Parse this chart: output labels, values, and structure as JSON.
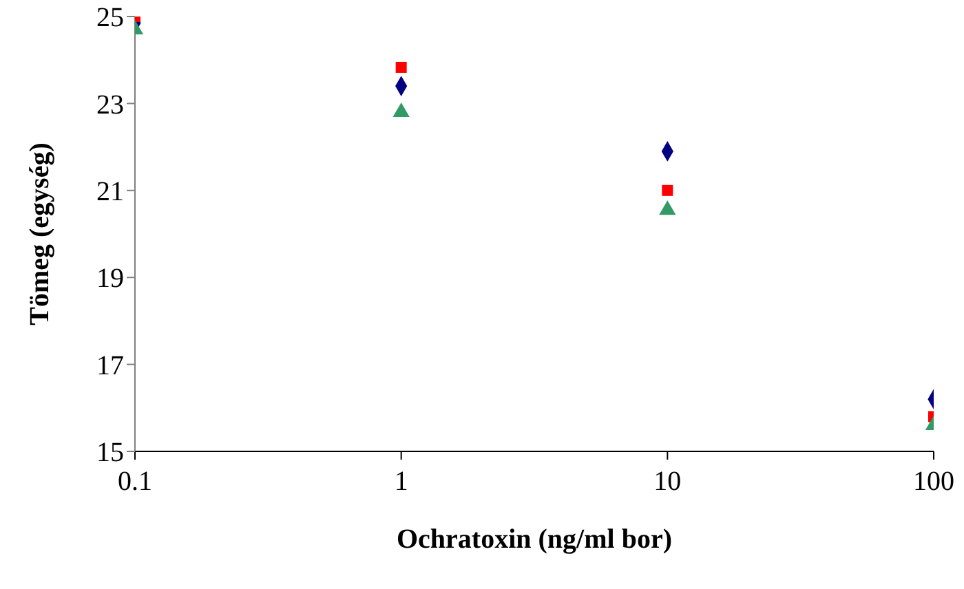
{
  "chart_data": {
    "type": "scatter",
    "xlabel": "Ochratoxin (ng/ml bor)",
    "ylabel": "Tömeg (egység)",
    "x": [
      0.1,
      1,
      10,
      100
    ],
    "series": [
      {
        "color": "#000080",
        "marker": "diamond",
        "values": [
          24.85,
          23.4,
          21.9,
          16.2
        ]
      },
      {
        "color": "#ff0000",
        "marker": "square",
        "values": [
          25.0,
          23.83,
          21.0,
          15.8
        ]
      },
      {
        "color": "#339966",
        "marker": "triangle",
        "values": [
          24.7,
          22.8,
          20.55,
          15.6
        ]
      }
    ],
    "log": "x",
    "xlim": [
      0.1,
      100
    ],
    "xticks": [
      0.1,
      1,
      10,
      100
    ],
    "ylim": [
      15,
      25
    ],
    "yticks": [
      15,
      17,
      19,
      21,
      23,
      25
    ],
    "grid": false,
    "legend": false
  }
}
